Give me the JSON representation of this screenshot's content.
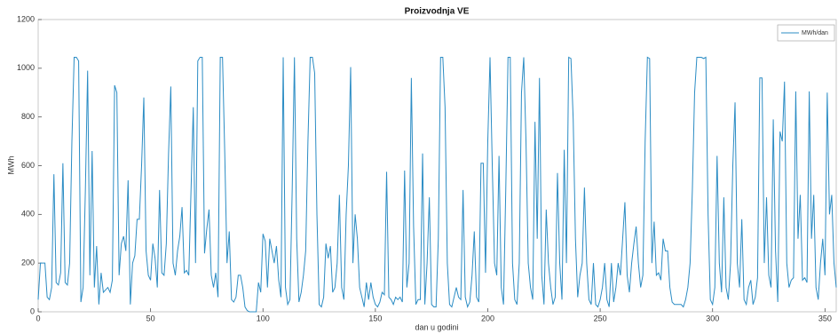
{
  "chart_data": {
    "type": "line",
    "title": "Proizvodnja VE",
    "x_label": "dan u godini",
    "y_label": "MWh",
    "x": [
      0,
      1,
      2,
      3,
      4,
      5,
      6,
      7,
      8,
      9,
      10,
      11,
      12,
      13,
      14,
      15,
      16,
      17,
      18,
      19,
      20,
      21,
      22,
      23,
      24,
      25,
      26,
      27,
      28,
      29,
      30,
      31,
      32,
      33,
      34,
      35,
      36,
      37,
      38,
      39,
      40,
      41,
      42,
      43,
      44,
      45,
      46,
      47,
      48,
      49,
      50,
      51,
      52,
      53,
      54,
      55,
      56,
      57,
      58,
      59,
      60,
      61,
      62,
      63,
      64,
      65,
      66,
      67,
      68,
      69,
      70,
      71,
      72,
      73,
      74,
      75,
      76,
      77,
      78,
      79,
      80,
      81,
      82,
      83,
      84,
      85,
      86,
      87,
      88,
      89,
      90,
      91,
      92,
      93,
      94,
      95,
      96,
      97,
      98,
      99,
      100,
      101,
      102,
      103,
      104,
      105,
      106,
      107,
      108,
      109,
      110,
      111,
      112,
      113,
      114,
      115,
      116,
      117,
      118,
      119,
      120,
      121,
      122,
      123,
      124,
      125,
      126,
      127,
      128,
      129,
      130,
      131,
      132,
      133,
      134,
      135,
      136,
      137,
      138,
      139,
      140,
      141,
      142,
      143,
      144,
      145,
      146,
      147,
      148,
      149,
      150,
      151,
      152,
      153,
      154,
      155,
      156,
      157,
      158,
      159,
      160,
      161,
      162,
      163,
      164,
      165,
      166,
      167,
      168,
      169,
      170,
      171,
      172,
      173,
      174,
      175,
      176,
      177,
      178,
      179,
      180,
      181,
      182,
      183,
      184,
      185,
      186,
      187,
      188,
      189,
      190,
      191,
      192,
      193,
      194,
      195,
      196,
      197,
      198,
      199,
      200,
      201,
      202,
      203,
      204,
      205,
      206,
      207,
      208,
      209,
      210,
      211,
      212,
      213,
      214,
      215,
      216,
      217,
      218,
      219,
      220,
      221,
      222,
      223,
      224,
      225,
      226,
      227,
      228,
      229,
      230,
      231,
      232,
      233,
      234,
      235,
      236,
      237,
      238,
      239,
      240,
      241,
      242,
      243,
      244,
      245,
      246,
      247,
      248,
      249,
      250,
      251,
      252,
      253,
      254,
      255,
      256,
      257,
      258,
      259,
      260,
      261,
      262,
      263,
      264,
      265,
      266,
      267,
      268,
      269,
      270,
      271,
      272,
      273,
      274,
      275,
      276,
      277,
      278,
      279,
      280,
      281,
      282,
      283,
      284,
      285,
      286,
      287,
      288,
      289,
      290,
      291,
      292,
      293,
      294,
      295,
      296,
      297,
      298,
      299,
      300,
      301,
      302,
      303,
      304,
      305,
      306,
      307,
      308,
      309,
      310,
      311,
      312,
      313,
      314,
      315,
      316,
      317,
      318,
      319,
      320,
      321,
      322,
      323,
      324,
      325,
      326,
      327,
      328,
      329,
      330,
      331,
      332,
      333,
      334,
      335,
      336,
      337,
      338,
      339,
      340,
      341,
      342,
      343,
      344,
      345,
      346,
      347,
      348,
      349,
      350,
      351,
      352,
      353,
      354,
      355
    ],
    "series": [
      {
        "name": "MWh/dan",
        "color": "#2b8cc4",
        "values": [
          50,
          200,
          200,
          200,
          60,
          50,
          100,
          565,
          120,
          110,
          160,
          610,
          120,
          110,
          200,
          700,
          1045,
          1045,
          1030,
          40,
          100,
          500,
          990,
          150,
          660,
          100,
          270,
          30,
          160,
          80,
          90,
          100,
          80,
          130,
          930,
          900,
          150,
          280,
          310,
          250,
          540,
          30,
          200,
          230,
          380,
          380,
          600,
          880,
          250,
          150,
          130,
          280,
          220,
          100,
          500,
          160,
          150,
          280,
          650,
          925,
          200,
          150,
          250,
          310,
          430,
          160,
          170,
          150,
          500,
          840,
          200,
          1030,
          1045,
          1045,
          240,
          340,
          420,
          150,
          100,
          160,
          60,
          1045,
          1045,
          650,
          200,
          330,
          50,
          40,
          60,
          150,
          150,
          100,
          20,
          5,
          0,
          0,
          0,
          0,
          120,
          80,
          320,
          290,
          100,
          300,
          250,
          200,
          270,
          130,
          60,
          1045,
          100,
          30,
          50,
          500,
          1045,
          300,
          40,
          80,
          150,
          250,
          700,
          1045,
          1045,
          980,
          400,
          30,
          20,
          60,
          280,
          220,
          270,
          80,
          100,
          200,
          480,
          100,
          50,
          400,
          600,
          1005,
          200,
          400,
          300,
          100,
          60,
          20,
          120,
          50,
          120,
          60,
          30,
          20,
          40,
          80,
          70,
          575,
          60,
          50,
          30,
          60,
          50,
          60,
          40,
          580,
          100,
          200,
          960,
          350,
          30,
          50,
          50,
          650,
          30,
          200,
          470,
          30,
          20,
          20,
          300,
          1045,
          1045,
          840,
          200,
          30,
          20,
          60,
          100,
          60,
          50,
          500,
          60,
          20,
          40,
          150,
          330,
          60,
          40,
          610,
          610,
          160,
          700,
          1045,
          600,
          200,
          150,
          640,
          100,
          30,
          500,
          1045,
          1045,
          200,
          50,
          30,
          200,
          900,
          1045,
          700,
          200,
          100,
          50,
          780,
          300,
          960,
          150,
          30,
          420,
          200,
          100,
          30,
          60,
          570,
          200,
          50,
          665,
          200,
          1045,
          1040,
          790,
          300,
          60,
          150,
          200,
          510,
          200,
          50,
          30,
          200,
          30,
          20,
          50,
          100,
          200,
          50,
          20,
          200,
          40,
          100,
          200,
          150,
          300,
          450,
          150,
          80,
          200,
          280,
          350,
          200,
          100,
          150,
          700,
          1045,
          1040,
          200,
          370,
          150,
          160,
          130,
          300,
          250,
          250,
          100,
          40,
          30,
          30,
          30,
          30,
          20,
          50,
          100,
          200,
          500,
          900,
          1045,
          1045,
          1045,
          1040,
          1045,
          400,
          50,
          30,
          100,
          640,
          200,
          80,
          470,
          100,
          50,
          200,
          600,
          860,
          200,
          100,
          380,
          50,
          30,
          100,
          130,
          30,
          60,
          140,
          960,
          960,
          200,
          470,
          150,
          100,
          790,
          250,
          40,
          740,
          700,
          945,
          200,
          100,
          130,
          140,
          905,
          300,
          480,
          130,
          140,
          120,
          905,
          300,
          480,
          100,
          50,
          200,
          300,
          150,
          900,
          400,
          480,
          200,
          100
        ]
      }
    ],
    "xlim": [
      0,
      355
    ],
    "ylim": [
      0,
      1200
    ],
    "xticks": [
      0,
      50,
      100,
      150,
      200,
      250,
      300,
      350
    ],
    "yticks": [
      0,
      200,
      400,
      600,
      800,
      1000,
      1200
    ],
    "legend_position": "upper right"
  }
}
